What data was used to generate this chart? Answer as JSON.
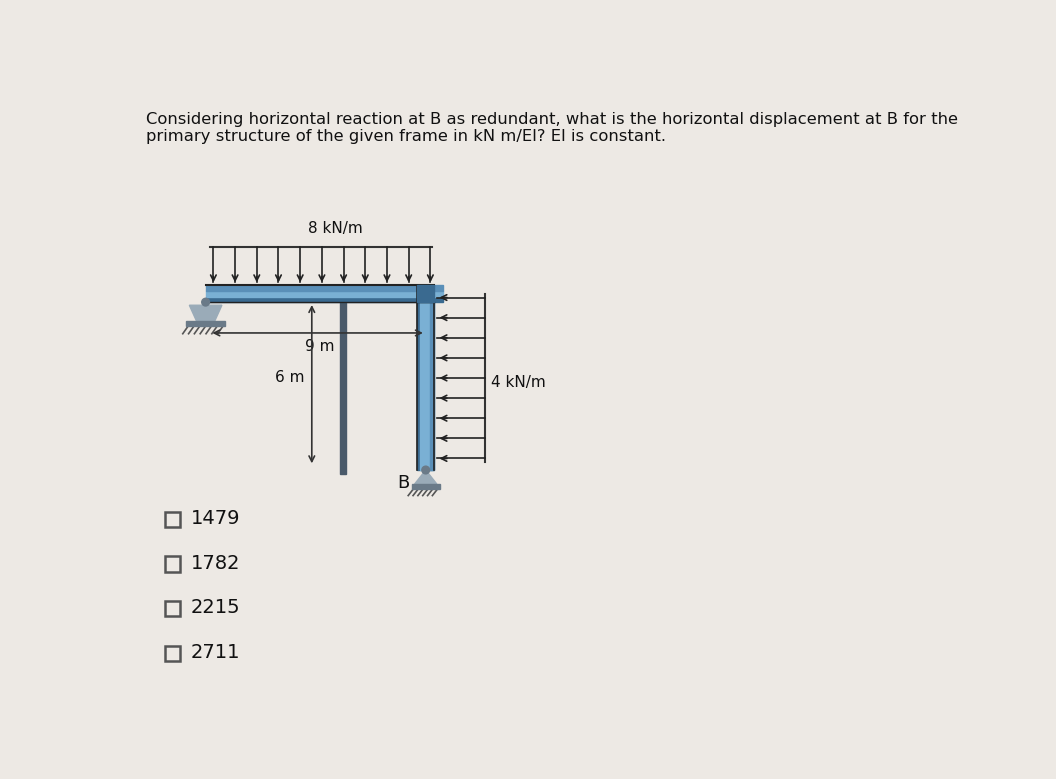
{
  "title_line1": "Considering horizontal reaction at B as redundant, what is the horizontal displacement at B for the",
  "title_line2": "primary structure of the given frame in kN m/EI? EI is constant.",
  "bg_color": "#ede9e4",
  "options": [
    "1479",
    "1782",
    "2215",
    "2711"
  ],
  "load_top_label": "8 kN/m",
  "load_right_label": "4 kN/m",
  "dim_horiz_label": "9 m",
  "dim_vert_label": "6 m",
  "point_B_label": "B",
  "beam_color_light": "#7ab0d4",
  "beam_color_mid": "#5a8fb8",
  "beam_color_dark": "#3a6a90",
  "support_color": "#9aabb8",
  "support_dark": "#6a7a88",
  "line_color": "#333333",
  "arrow_color": "#222222",
  "dim_line_color": "#333333"
}
